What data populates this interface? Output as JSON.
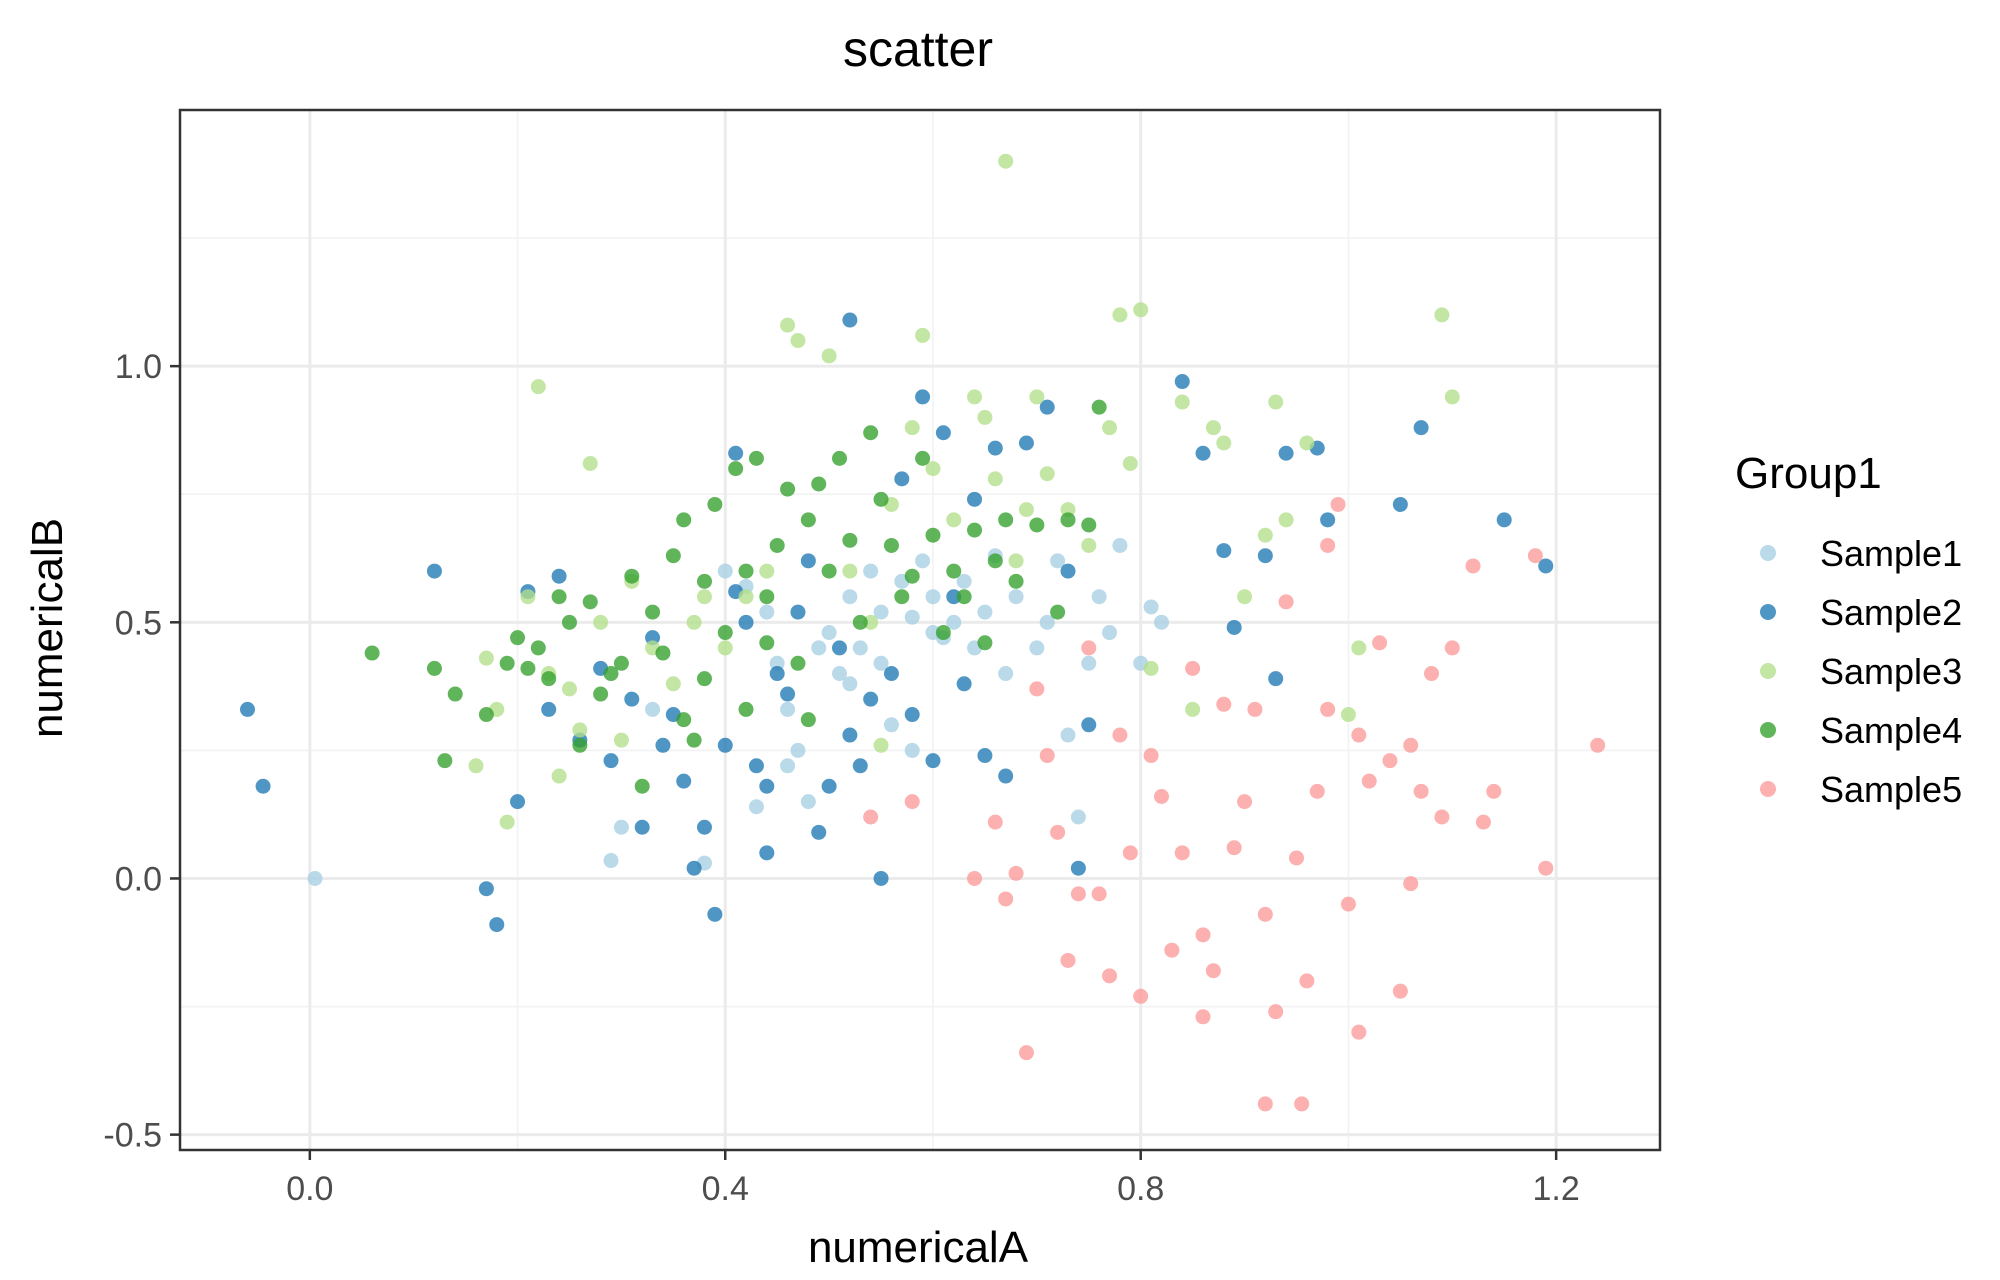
{
  "chart_data": {
    "type": "scatter",
    "title": "scatter",
    "xlabel": "numericalA",
    "ylabel": "numericalB",
    "xlim": [
      -0.125,
      1.3
    ],
    "ylim": [
      -0.53,
      1.5
    ],
    "x_ticks": [
      "0.0",
      "0.4",
      "0.8",
      "1.2"
    ],
    "x_tick_values": [
      0,
      0.4,
      0.8,
      1.2
    ],
    "y_ticks": [
      "-0.5",
      "0.0",
      "0.5",
      "1.0"
    ],
    "y_tick_values": [
      -0.5,
      0,
      0.5,
      1.0
    ],
    "grid": true,
    "legend_title": "Group1",
    "legend_position": "right",
    "series": [
      {
        "name": "Sample1",
        "color": "#a6cee3",
        "points": [
          [
            0.005,
            0.0
          ],
          [
            0.29,
            0.035
          ],
          [
            0.3,
            0.1
          ],
          [
            0.33,
            0.33
          ],
          [
            0.38,
            0.03
          ],
          [
            0.4,
            0.6
          ],
          [
            0.42,
            0.57
          ],
          [
            0.44,
            0.52
          ],
          [
            0.45,
            0.42
          ],
          [
            0.46,
            0.33
          ],
          [
            0.47,
            0.25
          ],
          [
            0.48,
            0.15
          ],
          [
            0.49,
            0.45
          ],
          [
            0.5,
            0.48
          ],
          [
            0.51,
            0.4
          ],
          [
            0.52,
            0.55
          ],
          [
            0.53,
            0.45
          ],
          [
            0.54,
            0.6
          ],
          [
            0.55,
            0.52
          ],
          [
            0.56,
            0.3
          ],
          [
            0.57,
            0.58
          ],
          [
            0.58,
            0.51
          ],
          [
            0.59,
            0.62
          ],
          [
            0.6,
            0.55
          ],
          [
            0.61,
            0.47
          ],
          [
            0.62,
            0.5
          ],
          [
            0.63,
            0.58
          ],
          [
            0.64,
            0.45
          ],
          [
            0.65,
            0.52
          ],
          [
            0.66,
            0.63
          ],
          [
            0.67,
            0.4
          ],
          [
            0.68,
            0.55
          ],
          [
            0.7,
            0.45
          ],
          [
            0.71,
            0.5
          ],
          [
            0.72,
            0.62
          ],
          [
            0.73,
            0.28
          ],
          [
            0.74,
            0.12
          ],
          [
            0.75,
            0.42
          ],
          [
            0.76,
            0.55
          ],
          [
            0.77,
            0.48
          ],
          [
            0.78,
            0.65
          ],
          [
            0.8,
            0.42
          ],
          [
            0.81,
            0.53
          ],
          [
            0.82,
            0.5
          ],
          [
            0.43,
            0.14
          ],
          [
            0.46,
            0.22
          ],
          [
            0.52,
            0.38
          ],
          [
            0.55,
            0.42
          ],
          [
            0.58,
            0.25
          ],
          [
            0.6,
            0.48
          ]
        ]
      },
      {
        "name": "Sample2",
        "color": "#1f78b4",
        "points": [
          [
            -0.06,
            0.33
          ],
          [
            -0.045,
            0.18
          ],
          [
            0.12,
            0.6
          ],
          [
            0.17,
            -0.02
          ],
          [
            0.18,
            -0.09
          ],
          [
            0.2,
            0.15
          ],
          [
            0.21,
            0.56
          ],
          [
            0.24,
            0.59
          ],
          [
            0.26,
            0.27
          ],
          [
            0.28,
            0.41
          ],
          [
            0.29,
            0.23
          ],
          [
            0.31,
            0.35
          ],
          [
            0.32,
            0.1
          ],
          [
            0.34,
            0.26
          ],
          [
            0.35,
            0.32
          ],
          [
            0.36,
            0.19
          ],
          [
            0.37,
            0.02
          ],
          [
            0.38,
            0.1
          ],
          [
            0.39,
            -0.07
          ],
          [
            0.4,
            0.26
          ],
          [
            0.41,
            0.56
          ],
          [
            0.42,
            0.5
          ],
          [
            0.43,
            0.22
          ],
          [
            0.44,
            0.05
          ],
          [
            0.45,
            0.4
          ],
          [
            0.46,
            0.36
          ],
          [
            0.47,
            0.52
          ],
          [
            0.48,
            0.62
          ],
          [
            0.49,
            0.09
          ],
          [
            0.5,
            0.18
          ],
          [
            0.51,
            0.45
          ],
          [
            0.52,
            1.09
          ],
          [
            0.53,
            0.22
          ],
          [
            0.54,
            0.35
          ],
          [
            0.55,
            0.0
          ],
          [
            0.56,
            0.4
          ],
          [
            0.57,
            0.78
          ],
          [
            0.58,
            0.32
          ],
          [
            0.59,
            0.94
          ],
          [
            0.6,
            0.23
          ],
          [
            0.61,
            0.87
          ],
          [
            0.62,
            0.55
          ],
          [
            0.63,
            0.38
          ],
          [
            0.64,
            0.74
          ],
          [
            0.65,
            0.24
          ],
          [
            0.66,
            0.84
          ],
          [
            0.67,
            0.2
          ],
          [
            0.69,
            0.85
          ],
          [
            0.71,
            0.92
          ],
          [
            0.73,
            0.6
          ],
          [
            0.74,
            0.02
          ],
          [
            0.75,
            0.3
          ],
          [
            0.84,
            0.97
          ],
          [
            0.86,
            0.83
          ],
          [
            0.88,
            0.64
          ],
          [
            0.89,
            0.49
          ],
          [
            0.92,
            0.63
          ],
          [
            0.93,
            0.39
          ],
          [
            0.94,
            0.83
          ],
          [
            0.97,
            0.84
          ],
          [
            0.98,
            0.7
          ],
          [
            1.05,
            0.73
          ],
          [
            1.07,
            0.88
          ],
          [
            1.15,
            0.7
          ],
          [
            1.19,
            0.61
          ],
          [
            0.23,
            0.33
          ],
          [
            0.41,
            0.83
          ],
          [
            0.33,
            0.47
          ],
          [
            0.44,
            0.18
          ],
          [
            0.52,
            0.28
          ]
        ]
      },
      {
        "name": "Sample3",
        "color": "#b2df8a",
        "points": [
          [
            0.16,
            0.22
          ],
          [
            0.17,
            0.43
          ],
          [
            0.18,
            0.33
          ],
          [
            0.19,
            0.11
          ],
          [
            0.21,
            0.55
          ],
          [
            0.22,
            0.96
          ],
          [
            0.23,
            0.4
          ],
          [
            0.24,
            0.2
          ],
          [
            0.25,
            0.37
          ],
          [
            0.26,
            0.29
          ],
          [
            0.27,
            0.81
          ],
          [
            0.28,
            0.5
          ],
          [
            0.3,
            0.27
          ],
          [
            0.31,
            0.58
          ],
          [
            0.33,
            0.45
          ],
          [
            0.35,
            0.38
          ],
          [
            0.37,
            0.5
          ],
          [
            0.38,
            0.55
          ],
          [
            0.4,
            0.45
          ],
          [
            0.42,
            0.55
          ],
          [
            0.44,
            0.6
          ],
          [
            0.46,
            1.08
          ],
          [
            0.47,
            1.05
          ],
          [
            0.5,
            1.02
          ],
          [
            0.52,
            0.6
          ],
          [
            0.54,
            0.5
          ],
          [
            0.55,
            0.26
          ],
          [
            0.56,
            0.73
          ],
          [
            0.58,
            0.88
          ],
          [
            0.59,
            1.06
          ],
          [
            0.6,
            0.8
          ],
          [
            0.62,
            0.7
          ],
          [
            0.64,
            0.94
          ],
          [
            0.65,
            0.9
          ],
          [
            0.66,
            0.78
          ],
          [
            0.67,
            1.4
          ],
          [
            0.68,
            0.62
          ],
          [
            0.69,
            0.72
          ],
          [
            0.7,
            0.94
          ],
          [
            0.71,
            0.79
          ],
          [
            0.73,
            0.72
          ],
          [
            0.75,
            0.65
          ],
          [
            0.77,
            0.88
          ],
          [
            0.78,
            1.1
          ],
          [
            0.79,
            0.81
          ],
          [
            0.8,
            1.11
          ],
          [
            0.81,
            0.41
          ],
          [
            0.84,
            0.93
          ],
          [
            0.85,
            0.33
          ],
          [
            0.87,
            0.88
          ],
          [
            0.88,
            0.85
          ],
          [
            0.9,
            0.55
          ],
          [
            0.92,
            0.67
          ],
          [
            0.93,
            0.93
          ],
          [
            0.94,
            0.7
          ],
          [
            0.96,
            0.85
          ],
          [
            1.0,
            0.32
          ],
          [
            1.01,
            0.45
          ],
          [
            1.09,
            1.1
          ],
          [
            1.1,
            0.94
          ]
        ]
      },
      {
        "name": "Sample4",
        "color": "#33a02c",
        "points": [
          [
            0.06,
            0.44
          ],
          [
            0.12,
            0.41
          ],
          [
            0.13,
            0.23
          ],
          [
            0.14,
            0.36
          ],
          [
            0.17,
            0.32
          ],
          [
            0.19,
            0.42
          ],
          [
            0.2,
            0.47
          ],
          [
            0.21,
            0.41
          ],
          [
            0.22,
            0.45
          ],
          [
            0.23,
            0.39
          ],
          [
            0.24,
            0.55
          ],
          [
            0.25,
            0.5
          ],
          [
            0.26,
            0.26
          ],
          [
            0.27,
            0.54
          ],
          [
            0.28,
            0.36
          ],
          [
            0.29,
            0.4
          ],
          [
            0.3,
            0.42
          ],
          [
            0.31,
            0.59
          ],
          [
            0.32,
            0.18
          ],
          [
            0.33,
            0.52
          ],
          [
            0.34,
            0.44
          ],
          [
            0.35,
            0.63
          ],
          [
            0.36,
            0.7
          ],
          [
            0.37,
            0.27
          ],
          [
            0.38,
            0.58
          ],
          [
            0.39,
            0.73
          ],
          [
            0.4,
            0.48
          ],
          [
            0.41,
            0.8
          ],
          [
            0.42,
            0.6
          ],
          [
            0.43,
            0.82
          ],
          [
            0.44,
            0.55
          ],
          [
            0.45,
            0.65
          ],
          [
            0.46,
            0.76
          ],
          [
            0.47,
            0.42
          ],
          [
            0.48,
            0.7
          ],
          [
            0.49,
            0.77
          ],
          [
            0.5,
            0.6
          ],
          [
            0.51,
            0.82
          ],
          [
            0.52,
            0.66
          ],
          [
            0.53,
            0.5
          ],
          [
            0.54,
            0.87
          ],
          [
            0.55,
            0.74
          ],
          [
            0.56,
            0.65
          ],
          [
            0.57,
            0.55
          ],
          [
            0.58,
            0.59
          ],
          [
            0.59,
            0.82
          ],
          [
            0.6,
            0.67
          ],
          [
            0.61,
            0.48
          ],
          [
            0.62,
            0.6
          ],
          [
            0.63,
            0.55
          ],
          [
            0.64,
            0.68
          ],
          [
            0.65,
            0.46
          ],
          [
            0.66,
            0.62
          ],
          [
            0.67,
            0.7
          ],
          [
            0.68,
            0.58
          ],
          [
            0.7,
            0.69
          ],
          [
            0.72,
            0.52
          ],
          [
            0.73,
            0.7
          ],
          [
            0.75,
            0.69
          ],
          [
            0.76,
            0.92
          ],
          [
            0.36,
            0.31
          ],
          [
            0.42,
            0.33
          ],
          [
            0.48,
            0.31
          ],
          [
            0.38,
            0.39
          ],
          [
            0.44,
            0.46
          ]
        ]
      },
      {
        "name": "Sample5",
        "color": "#fb9a99",
        "points": [
          [
            0.54,
            0.12
          ],
          [
            0.58,
            0.15
          ],
          [
            0.64,
            0.0
          ],
          [
            0.66,
            0.11
          ],
          [
            0.67,
            -0.04
          ],
          [
            0.68,
            0.01
          ],
          [
            0.69,
            -0.34
          ],
          [
            0.7,
            0.37
          ],
          [
            0.71,
            0.24
          ],
          [
            0.72,
            0.09
          ],
          [
            0.73,
            -0.16
          ],
          [
            0.74,
            -0.03
          ],
          [
            0.75,
            0.45
          ],
          [
            0.76,
            -0.03
          ],
          [
            0.77,
            -0.19
          ],
          [
            0.78,
            0.28
          ],
          [
            0.79,
            0.05
          ],
          [
            0.8,
            -0.23
          ],
          [
            0.81,
            0.24
          ],
          [
            0.82,
            0.16
          ],
          [
            0.83,
            -0.14
          ],
          [
            0.84,
            0.05
          ],
          [
            0.85,
            0.41
          ],
          [
            0.86,
            -0.27
          ],
          [
            0.87,
            -0.18
          ],
          [
            0.88,
            0.34
          ],
          [
            0.89,
            0.06
          ],
          [
            0.9,
            0.15
          ],
          [
            0.91,
            0.33
          ],
          [
            0.92,
            -0.07
          ],
          [
            0.93,
            -0.26
          ],
          [
            0.94,
            0.54
          ],
          [
            0.95,
            0.04
          ],
          [
            0.96,
            -0.2
          ],
          [
            0.97,
            0.17
          ],
          [
            0.98,
            0.33
          ],
          [
            0.99,
            0.73
          ],
          [
            1.0,
            -0.05
          ],
          [
            1.01,
            0.28
          ],
          [
            1.02,
            0.19
          ],
          [
            1.03,
            0.46
          ],
          [
            1.04,
            0.23
          ],
          [
            1.05,
            -0.22
          ],
          [
            1.06,
            0.26
          ],
          [
            1.07,
            0.17
          ],
          [
            1.08,
            0.4
          ],
          [
            1.09,
            0.12
          ],
          [
            1.1,
            0.45
          ],
          [
            1.12,
            0.61
          ],
          [
            1.13,
            0.11
          ],
          [
            1.14,
            0.17
          ],
          [
            1.18,
            0.63
          ],
          [
            1.19,
            0.02
          ],
          [
            1.24,
            0.26
          ],
          [
            0.92,
            -0.44
          ],
          [
            0.955,
            -0.44
          ],
          [
            1.01,
            -0.3
          ],
          [
            0.86,
            -0.11
          ],
          [
            0.98,
            0.65
          ],
          [
            1.06,
            -0.01
          ]
        ]
      }
    ]
  }
}
